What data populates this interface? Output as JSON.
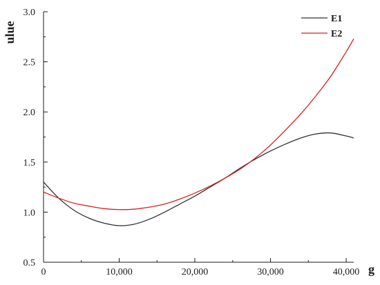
{
  "chart_data": {
    "type": "line",
    "title": "",
    "xlabel": "g",
    "ylabel": "ulue",
    "xlim": [
      0,
      41000
    ],
    "ylim": [
      0.5,
      3.0
    ],
    "x_ticks": [
      0,
      10000,
      20000,
      30000,
      40000
    ],
    "x_tick_labels": [
      "0",
      "10,000",
      "20,000",
      "30,000",
      "40,000"
    ],
    "y_ticks": [
      0.5,
      1.0,
      1.5,
      2.0,
      2.5,
      3.0
    ],
    "y_tick_labels": [
      "0.5",
      "1.0",
      "1.5",
      "2.0",
      "2.5",
      "3.0"
    ],
    "grid": false,
    "legend_position": "top-right",
    "x": [
      0,
      2000,
      4000,
      6000,
      8000,
      10000,
      12000,
      14000,
      16000,
      18000,
      20000,
      22000,
      24000,
      26000,
      28000,
      30000,
      32000,
      34000,
      36000,
      38000,
      40000,
      41000
    ],
    "series": [
      {
        "name": "E1",
        "color": "#303030",
        "values": [
          1.3,
          1.14,
          1.02,
          0.94,
          0.89,
          0.865,
          0.88,
          0.93,
          1.0,
          1.08,
          1.16,
          1.25,
          1.34,
          1.44,
          1.53,
          1.61,
          1.68,
          1.74,
          1.78,
          1.79,
          1.76,
          1.74
        ]
      },
      {
        "name": "E2",
        "color": "#d42020",
        "values": [
          1.2,
          1.14,
          1.09,
          1.06,
          1.035,
          1.025,
          1.03,
          1.05,
          1.08,
          1.13,
          1.19,
          1.26,
          1.34,
          1.43,
          1.54,
          1.67,
          1.82,
          1.98,
          2.16,
          2.36,
          2.6,
          2.73
        ]
      }
    ]
  }
}
